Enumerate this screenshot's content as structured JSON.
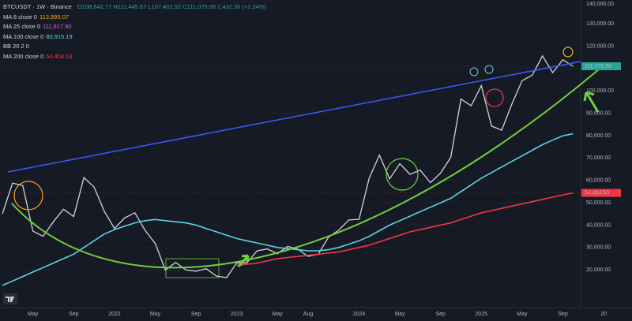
{
  "header": {
    "symbol": "BTCUSDT · 1W · Binance",
    "ohlc": "O108,642.77 H111,445.67 L107,402.52 C111,075.08 2,432.30 (+2.24%)",
    "indicators": [
      {
        "name": "MA 8 close 0",
        "value": "113,995.07",
        "color": "#f7a21b"
      },
      {
        "name": "MA 25 close 0",
        "value": "111,817.90",
        "color": "#d65bd6"
      },
      {
        "name": "MA 100 close 0",
        "value": "80,915.19",
        "color": "#5ad4e6"
      },
      {
        "name": "BB 20 2 0",
        "value": null,
        "color": "#787b86"
      },
      {
        "name": "MA 200 close 0",
        "value": "54,404.53",
        "color": "#f23645"
      }
    ]
  },
  "chart_data": {
    "type": "line",
    "categories": [
      null,
      null,
      null,
      "May",
      null,
      null,
      null,
      "Sep",
      null,
      null,
      null,
      "2022",
      null,
      null,
      null,
      "May",
      null,
      null,
      null,
      "Sep",
      null,
      null,
      null,
      "2023",
      null,
      null,
      null,
      "May",
      null,
      null,
      "Aug",
      null,
      null,
      null,
      null,
      "2024",
      null,
      null,
      null,
      "May",
      null,
      null,
      null,
      "Sep",
      null,
      null,
      null,
      "2025",
      null,
      null,
      null,
      "May",
      null,
      null,
      null,
      "Sep",
      null,
      null,
      null,
      "20",
      null
    ],
    "series": [
      {
        "color": "#d1d4dc",
        "values": [
          45000,
          58800,
          57700,
          37300,
          35000,
          41500,
          47100,
          43800,
          61300,
          57000,
          46200,
          38500,
          43200,
          45500,
          37700,
          31800,
          19900,
          23300,
          20000,
          19400,
          20500,
          17200,
          16500,
          23100,
          23100,
          28500,
          29300,
          27200,
          30500,
          29200,
          26000,
          27000,
          34600,
          37700,
          42300,
          42600,
          61100,
          71300,
          60700,
          67500,
          62700,
          64600,
          59000,
          63300,
          70300,
          96400,
          93400,
          102400,
          84300,
          82500,
          94200,
          104600,
          107100,
          115700,
          108200,
          114000,
          111075.08,
          null,
          null,
          null,
          null
        ]
      },
      {
        "color": "#5ad4e6",
        "values": [
          13000,
          15000,
          17000,
          19000,
          21000,
          23000,
          25000,
          27000,
          30000,
          33000,
          36000,
          38000,
          39500,
          41000,
          42000,
          42500,
          42000,
          41500,
          41000,
          40000,
          38500,
          37000,
          35500,
          34000,
          33000,
          32000,
          31000,
          30000,
          29500,
          29000,
          28500,
          28500,
          29000,
          30000,
          31500,
          33000,
          35000,
          37500,
          40000,
          42000,
          44000,
          46000,
          48000,
          50000,
          52000,
          55000,
          58000,
          61000,
          63500,
          66000,
          68500,
          71000,
          73500,
          76000,
          78000,
          80000,
          80915.19,
          null,
          null,
          null,
          null
        ]
      },
      {
        "color": "#f23645",
        "values": [
          null,
          null,
          null,
          null,
          null,
          null,
          null,
          null,
          null,
          null,
          null,
          null,
          null,
          null,
          null,
          null,
          null,
          null,
          null,
          null,
          null,
          null,
          null,
          22000,
          22500,
          23000,
          24000,
          25000,
          25500,
          26000,
          26500,
          27000,
          27500,
          28000,
          29000,
          30000,
          31000,
          32500,
          34000,
          35500,
          37000,
          38000,
          39000,
          40000,
          41000,
          42500,
          44000,
          45500,
          46500,
          47500,
          48500,
          49500,
          50500,
          51500,
          52500,
          53500,
          54404.53,
          null,
          null,
          null,
          null
        ]
      }
    ],
    "ylim": [
      3100,
      140000
    ],
    "yticks": [
      {
        "value": 140000,
        "label": "140,000.00"
      },
      {
        "value": 130000,
        "label": "130,000.00"
      },
      {
        "value": 120000,
        "label": "120,000.00"
      },
      {
        "value": 110000,
        "label": "110,000.00"
      },
      {
        "value": 100000,
        "label": "100,000.00"
      },
      {
        "value": 90000,
        "label": "90,000.00"
      },
      {
        "value": 80000,
        "label": "80,000.00"
      },
      {
        "value": 70000,
        "label": "70,000.00"
      },
      {
        "value": 60000,
        "label": "60,000.00"
      },
      {
        "value": 50000,
        "label": "50,000.00"
      },
      {
        "value": 40000,
        "label": "40,000.00"
      },
      {
        "value": 30000,
        "label": "30,000.00"
      },
      {
        "value": 20000,
        "label": "20,000.00"
      }
    ],
    "grid": true,
    "price_tags": [
      {
        "value": 111075.08,
        "label": "111,075.08",
        "color": "#26a69a"
      },
      {
        "value": 54404.53,
        "label": "54,404.53",
        "color": "#f23645"
      }
    ]
  }
}
